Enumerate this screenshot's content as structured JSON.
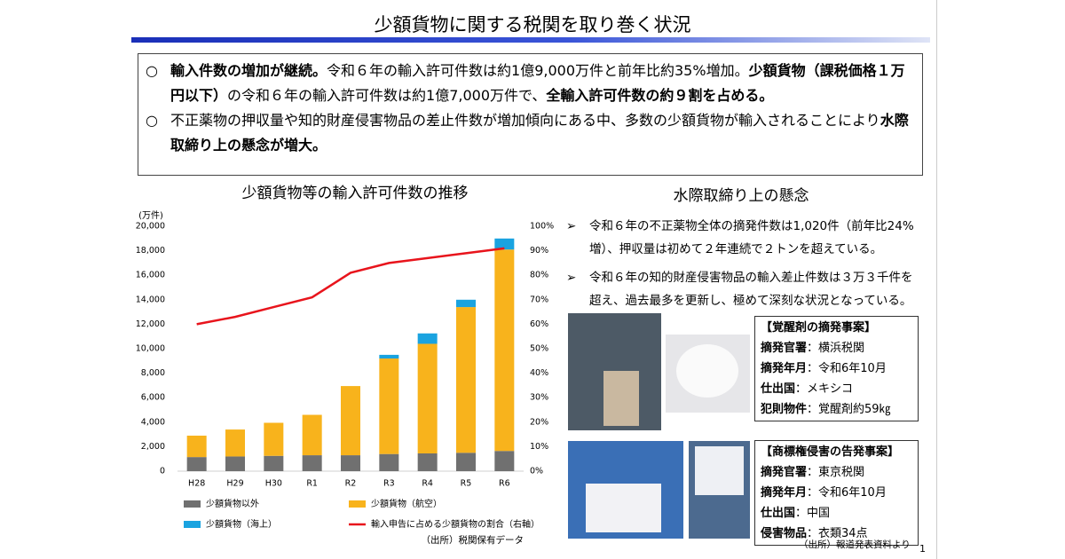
{
  "header": {
    "title": "少額貨物に関する税関を取り巻く状況"
  },
  "summary": {
    "bullets": [
      {
        "marker": "○",
        "segments": [
          {
            "text": "輸入件数の増加が継続。",
            "bold": true
          },
          {
            "text": "令和６年の輸入許可件数は約1億9,000万件と前年比約35%増加。"
          },
          {
            "text": "少額貨物（課税価格１万円以下）",
            "bold": true
          },
          {
            "text": "の令和６年の輸入許可件数は約1億7,000万件で、"
          },
          {
            "text": "全輸入許可件数の約９割を占める。",
            "bold": true
          }
        ]
      },
      {
        "marker": "○",
        "segments": [
          {
            "text": "不正薬物の押収量や知的財産侵害物品の差止件数が増加傾向にある中、多数の少額貨物が輸入されることにより"
          },
          {
            "text": "水際取締り上の懸念が増大。",
            "bold": true
          }
        ]
      }
    ]
  },
  "chart_data": {
    "type": "bar",
    "title": "少額貨物等の輸入許可件数の推移",
    "y_label": "(万件)",
    "source": "（出所）税関保有データ",
    "categories": [
      "H28",
      "H29",
      "H30",
      "R1",
      "R2",
      "R3",
      "R4",
      "R5",
      "R6"
    ],
    "series": [
      {
        "name": "少額貨物以外",
        "color": "#707070",
        "values": [
          1150,
          1200,
          1250,
          1300,
          1300,
          1400,
          1450,
          1500,
          1650
        ]
      },
      {
        "name": "少額貨物（航空）",
        "color": "#f8b31c",
        "values": [
          1750,
          2200,
          2700,
          3300,
          5650,
          7800,
          8950,
          11900,
          16450
        ]
      },
      {
        "name": "少額貨物（海上）",
        "color": "#1aa3e0",
        "values": [
          0,
          0,
          0,
          0,
          0,
          300,
          850,
          600,
          900
        ]
      },
      {
        "name": "輸入申告に占める少額貨物の割合（右軸）",
        "color": "#e8141c",
        "axis": "y2",
        "values": [
          60,
          63,
          67,
          71,
          81,
          85,
          87,
          89,
          91
        ]
      }
    ],
    "ylim": [
      0,
      20000
    ],
    "yticks": [
      0,
      {
        "value": 2000,
        "label": "2,000"
      },
      {
        "value": 4000,
        "label": "4,000"
      },
      {
        "value": 6000,
        "label": "6,000"
      },
      {
        "value": 8000,
        "label": "8,000"
      },
      {
        "value": 10000,
        "label": "10,000"
      },
      {
        "value": 12000,
        "label": "12,000"
      },
      {
        "value": 14000,
        "label": "14,000"
      },
      {
        "value": 16000,
        "label": "16,000"
      },
      {
        "value": 18000,
        "label": "18,000"
      },
      {
        "value": 20000,
        "label": "20,000"
      }
    ],
    "y2lim": [
      0,
      100
    ],
    "y2ticks": [
      {
        "value": 0,
        "label": "0%"
      },
      {
        "value": 10,
        "label": "10%"
      },
      {
        "value": 20,
        "label": "20%"
      },
      {
        "value": 30,
        "label": "30%"
      },
      {
        "value": 40,
        "label": "40%"
      },
      {
        "value": 50,
        "label": "50%"
      },
      {
        "value": 60,
        "label": "60%"
      },
      {
        "value": 70,
        "label": "70%"
      },
      {
        "value": 80,
        "label": "80%"
      },
      {
        "value": 90,
        "label": "90%"
      },
      {
        "value": 100,
        "label": "100%"
      }
    ],
    "grid": false,
    "stacked": true
  },
  "concerns": {
    "title": "水際取締り上の懸念",
    "bullets": [
      {
        "marker": "➢",
        "text": "令和６年の不正薬物全体の摘発件数は1,020件（前年比24%増）、押収量は初めて２年連続で２トンを超えている。"
      },
      {
        "marker": "➢",
        "text": "令和６年の知的財産侵害物品の輸入差止件数は３万３千件を超え、過去最多を更新し、極めて深刻な状況となっている。"
      }
    ]
  },
  "cases": [
    {
      "title": "【覚醒剤の摘発事案】",
      "rows": [
        {
          "label": "摘発官署",
          "value": "：横浜税関"
        },
        {
          "label": "摘発年月",
          "value": "：令和6年10月"
        },
        {
          "label": "仕出国",
          "value": "：メキシコ"
        },
        {
          "label": "犯則物件",
          "value": "：覚醒剤約59㎏"
        }
      ]
    },
    {
      "title": "【商標権侵害の告発事案】",
      "rows": [
        {
          "label": "摘発官署",
          "value": "：東京税関"
        },
        {
          "label": "摘発年月",
          "value": "：令和6年10月"
        },
        {
          "label": "仕出国",
          "value": "：中国"
        },
        {
          "label": "侵害物品",
          "value": "：衣類34点"
        }
      ]
    }
  ],
  "footer": {
    "source": "（出所）報道発表資料より",
    "page": "1"
  }
}
